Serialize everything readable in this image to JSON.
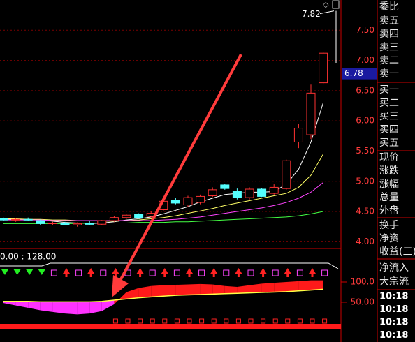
{
  "chart_data": [
    {
      "type": "candlestick",
      "open": [
        4.38,
        4.36,
        4.37,
        4.35,
        4.3,
        4.31,
        4.28,
        4.3,
        4.29,
        4.35,
        4.4,
        4.46,
        4.42,
        4.53,
        4.68,
        4.61,
        4.65,
        4.76,
        4.94,
        4.84,
        4.73,
        4.87,
        4.8,
        4.88,
        5.65,
        5.77,
        6.63
      ],
      "high": [
        4.4,
        4.39,
        4.4,
        4.37,
        4.33,
        4.33,
        4.32,
        4.34,
        4.36,
        4.42,
        4.45,
        4.47,
        4.5,
        4.7,
        4.72,
        4.76,
        4.78,
        4.9,
        4.96,
        4.88,
        4.9,
        4.89,
        4.95,
        5.36,
        5.95,
        6.6,
        7.14
      ],
      "low": [
        4.34,
        4.33,
        4.35,
        4.28,
        4.27,
        4.27,
        4.25,
        4.28,
        4.27,
        4.33,
        4.38,
        4.38,
        4.4,
        4.5,
        4.62,
        4.58,
        4.62,
        4.74,
        4.86,
        4.7,
        4.7,
        4.74,
        4.78,
        4.86,
        5.55,
        5.7,
        6.6
      ],
      "close": [
        4.36,
        4.37,
        4.36,
        4.3,
        4.31,
        4.28,
        4.3,
        4.29,
        4.35,
        4.4,
        4.44,
        4.4,
        4.47,
        4.67,
        4.64,
        4.73,
        4.75,
        4.86,
        4.88,
        4.73,
        4.87,
        4.75,
        4.9,
        5.34,
        5.88,
        6.46,
        7.12
      ],
      "up_color": "#ff3232",
      "down_color": "#54ffff",
      "series": [
        {
          "color": "#ffffff",
          "values": [
            4.37,
            4.37,
            4.37,
            4.36,
            4.34,
            4.32,
            4.31,
            4.3,
            4.31,
            4.33,
            4.36,
            4.38,
            4.41,
            4.46,
            4.52,
            4.58,
            4.66,
            4.72,
            4.78,
            4.8,
            4.82,
            4.82,
            4.83,
            4.95,
            5.2,
            5.65,
            6.3
          ]
        },
        {
          "color": "#ffff66",
          "values": [
            4.38,
            4.38,
            4.37,
            4.37,
            4.36,
            4.36,
            4.35,
            4.35,
            4.34,
            4.34,
            4.35,
            4.36,
            4.38,
            4.4,
            4.43,
            4.47,
            4.51,
            4.55,
            4.6,
            4.64,
            4.68,
            4.72,
            4.76,
            4.8,
            4.9,
            5.1,
            5.45
          ]
        },
        {
          "color": "#ff44ff",
          "values": [
            4.36,
            4.36,
            4.36,
            4.36,
            4.35,
            4.35,
            4.35,
            4.35,
            4.35,
            4.35,
            4.35,
            4.35,
            4.35,
            4.36,
            4.37,
            4.39,
            4.41,
            4.44,
            4.47,
            4.5,
            4.53,
            4.56,
            4.6,
            4.65,
            4.72,
            4.82,
            4.98
          ]
        },
        {
          "color": "#44ff44",
          "values": [
            4.3,
            4.3,
            4.3,
            4.3,
            4.3,
            4.3,
            4.3,
            4.31,
            4.31,
            4.31,
            4.31,
            4.32,
            4.32,
            4.32,
            4.33,
            4.33,
            4.34,
            4.35,
            4.36,
            4.37,
            4.38,
            4.39,
            4.4,
            4.41,
            4.43,
            4.46,
            4.5
          ]
        }
      ],
      "ylim": [
        3.9,
        8.0
      ],
      "yticks": [
        {
          "value": 7.5,
          "label": "7.50"
        },
        {
          "value": 7.0,
          "label": "7.00"
        },
        {
          "value": 6.5,
          "label": "6.50"
        },
        {
          "value": 6.0,
          "label": "6.00"
        },
        {
          "value": 5.5,
          "label": "5.50"
        },
        {
          "value": 5.0,
          "label": "5.00"
        },
        {
          "value": 4.5,
          "label": "4.50"
        },
        {
          "value": 4.0,
          "label": "4.00"
        }
      ],
      "grid": true,
      "current_price": 6.78,
      "high_marker": 7.82
    },
    {
      "type": "ribbon",
      "subtitle": "0.00 : 128.00",
      "series": [
        {
          "color": "#ffff44",
          "values": [
            52,
            52,
            52,
            51,
            51,
            51,
            51,
            51,
            52,
            55,
            58,
            61,
            63,
            65,
            67,
            68,
            69,
            70,
            71,
            72,
            73,
            74,
            75,
            76,
            78,
            80,
            82
          ]
        },
        {
          "values": [
            48,
            42,
            36,
            30,
            26,
            22,
            20,
            22,
            28,
            45,
            75,
            85,
            90,
            92,
            93,
            94,
            95,
            94,
            90,
            88,
            92,
            96,
            98,
            100,
            102,
            104,
            104
          ]
        }
      ],
      "colors": [
        "#ff1a1a",
        "#ff33ff"
      ],
      "ylim": [
        -14,
        176
      ],
      "yticks": [
        {
          "value": 100,
          "label": "100.0"
        },
        {
          "value": 50,
          "label": "50.00"
        }
      ],
      "grid": true
    }
  ],
  "side_panel": {
    "labels": [
      "委比",
      "卖五",
      "卖四",
      "卖三",
      "卖二",
      "卖一",
      "买一",
      "买二",
      "买三",
      "买四",
      "买五",
      "现价",
      "涨跌",
      "涨幅",
      "总量",
      "外盘",
      "换手",
      "净资",
      "收益(三)",
      "净流入",
      "大宗流"
    ],
    "times": [
      "10:18",
      "10:18",
      "10:18",
      "10:18"
    ]
  }
}
